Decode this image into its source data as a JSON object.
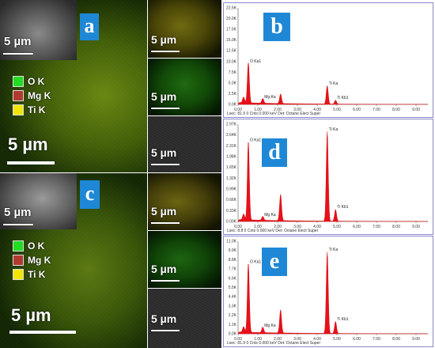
{
  "scale": "5 µm",
  "legend": [
    {
      "label": "O K",
      "color": "#22dd22"
    },
    {
      "label": "Mg K",
      "color": "#b03a2e"
    },
    {
      "label": "Ti K",
      "color": "#f2e600"
    }
  ],
  "panels": {
    "a": "a",
    "b": "b",
    "c": "c",
    "d": "d",
    "e": "e"
  },
  "spectra": {
    "b": {
      "yticks": [
        "22.5K",
        "20.0K",
        "17.5K",
        "15.0K",
        "12.5K",
        "10.0K",
        "7.5K",
        "5.0K",
        "2.5K",
        "0.0K"
      ],
      "xticks": [
        "0.00",
        "1.00",
        "2.00",
        "3.00",
        "4.00",
        "5.00",
        "6.00",
        "7.00",
        "8.00",
        "9.00"
      ],
      "peaks": [
        {
          "label": "O Ka1",
          "energy": 0.52,
          "height": 0.42
        },
        {
          "label": "Mg Ka",
          "energy": 1.25,
          "height": 0.05
        },
        {
          "label": "Ti Ka",
          "energy": 4.51,
          "height": 0.19
        },
        {
          "label": "Ti Kb1",
          "energy": 4.93,
          "height": 0.04
        }
      ],
      "footer": "Lsec: 81.9    0 Cnts    0.000 keV    Det: Octane Elect Super"
    },
    "d": {
      "yticks": [
        "2.97K",
        "2.64K",
        "2.31K",
        "1.98K",
        "1.65K",
        "1.32K",
        "0.99K",
        "0.66K",
        "0.33K",
        "0.00K"
      ],
      "xticks": [
        "0.00",
        "1.00",
        "2.00",
        "3.00",
        "4.00",
        "5.00",
        "6.00",
        "7.00",
        "8.00",
        "9.00"
      ],
      "peaks": [
        {
          "label": "O Ka1",
          "energy": 0.52,
          "height": 0.81
        },
        {
          "label": "Mg Ka",
          "energy": 1.25,
          "height": 0.04
        },
        {
          "label": "Ti Ka",
          "energy": 4.51,
          "height": 0.92
        },
        {
          "label": "Ti Kb1",
          "energy": 4.93,
          "height": 0.12
        }
      ],
      "footer": "Lsec: 8.8    0 Cnts    0.000 keV    Det: Octane Elect Super"
    },
    "e": {
      "yticks": [
        "11.0K",
        "9.9K",
        "8.8K",
        "7.7K",
        "6.6K",
        "5.5K",
        "4.4K",
        "3.3K",
        "2.2K",
        "1.1K",
        "0.0K"
      ],
      "xticks": [
        "0.00",
        "1.00",
        "2.00",
        "3.00",
        "4.00",
        "5.00",
        "6.00",
        "7.00",
        "8.00",
        "9.00"
      ],
      "peaks": [
        {
          "label": "O Ka1",
          "energy": 0.52,
          "height": 0.75
        },
        {
          "label": "Mg Ka",
          "energy": 1.25,
          "height": 0.06
        },
        {
          "label": "Ti Ka",
          "energy": 4.51,
          "height": 0.88
        },
        {
          "label": "Ti Kb1",
          "energy": 4.93,
          "height": 0.13
        }
      ],
      "footer": "Lsec: 81.9    0 Cnts    0.000 keV    Det: Octane Elect Super"
    }
  }
}
